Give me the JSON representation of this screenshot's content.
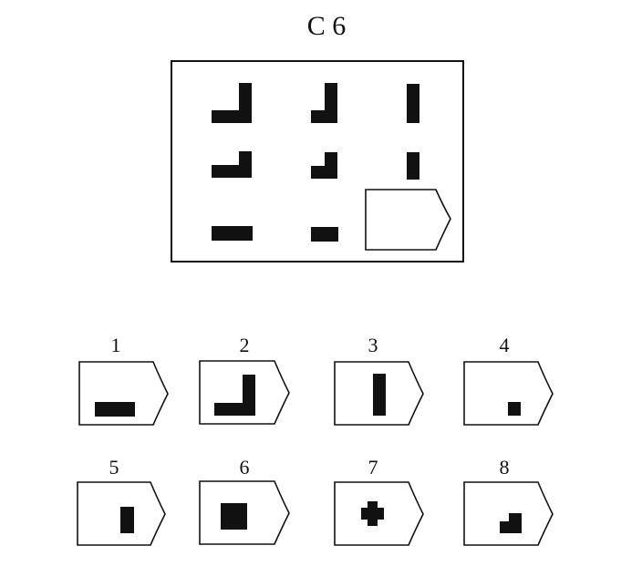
{
  "title": "C 6",
  "matrix": [
    {
      "shape": "L-large"
    },
    {
      "shape": "L-medium"
    },
    {
      "shape": "bar-vertical-tall"
    },
    {
      "shape": "L-small"
    },
    {
      "shape": "L-smaller"
    },
    {
      "shape": "bar-vertical-short"
    },
    {
      "shape": "bar-horizontal-long"
    },
    {
      "shape": "bar-horizontal-short"
    },
    {
      "shape": "blank-answer-tag"
    }
  ],
  "options": [
    {
      "label": "1",
      "shape": "bar-horizontal"
    },
    {
      "label": "2",
      "shape": "L-large"
    },
    {
      "label": "3",
      "shape": "bar-vertical"
    },
    {
      "label": "4",
      "shape": "square-small"
    },
    {
      "label": "5",
      "shape": "bar-vertical-short"
    },
    {
      "label": "6",
      "shape": "square-large"
    },
    {
      "label": "7",
      "shape": "cross"
    },
    {
      "label": "8",
      "shape": "L-small"
    }
  ]
}
